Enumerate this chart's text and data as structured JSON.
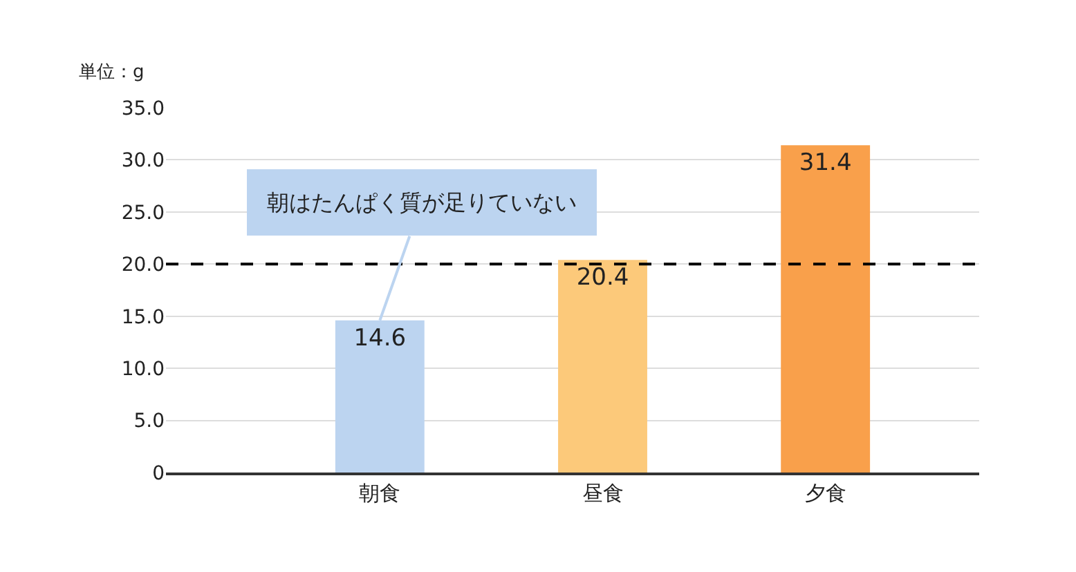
{
  "chart_data": {
    "type": "bar",
    "ylabel": "単位：g",
    "categories": [
      "朝食",
      "昼食",
      "夕食"
    ],
    "values": [
      14.6,
      20.4,
      31.4
    ],
    "colors": [
      "#bcd4f0",
      "#fcc97a",
      "#f9a04b"
    ],
    "ylim": [
      0,
      35
    ],
    "yticks": [
      {
        "value": 0,
        "label": "0"
      },
      {
        "value": 5,
        "label": "5.0"
      },
      {
        "value": 10,
        "label": "10.0"
      },
      {
        "value": 15,
        "label": "15.0"
      },
      {
        "value": 20,
        "label": "20.0"
      },
      {
        "value": 25,
        "label": "25.0"
      },
      {
        "value": 30,
        "label": "30.0"
      },
      {
        "value": 35,
        "label": "35.0"
      }
    ],
    "grid": "y",
    "legend": false,
    "data_labels": true,
    "ref_lines": [
      {
        "axis": "y",
        "value": 20,
        "color": "#000000",
        "line_style": "dashed"
      }
    ],
    "annotations": [
      {
        "text": "朝はたんぱく質が足りていない",
        "x": "朝食",
        "y": 14.6
      }
    ]
  }
}
